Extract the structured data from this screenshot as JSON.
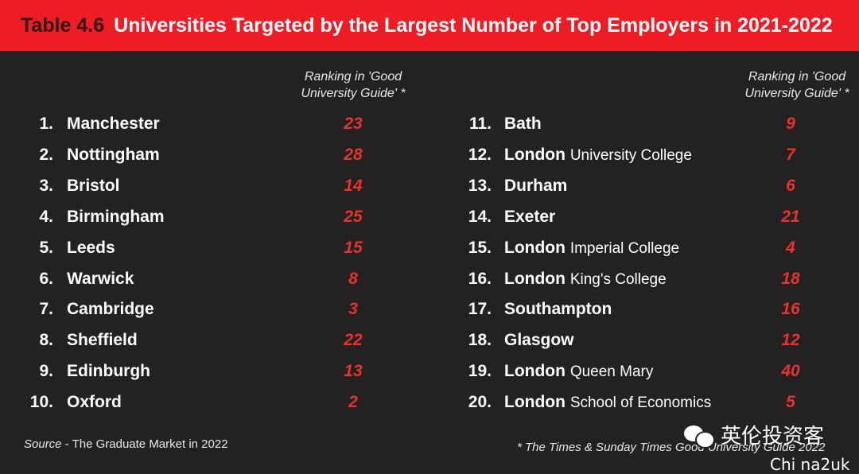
{
  "header": {
    "table_number": "Table 4.6",
    "title": "Universities Targeted by the Largest Number of Top Employers in 2021-2022"
  },
  "column_header": {
    "line1": "Ranking in 'Good",
    "line2": "University Guide' *"
  },
  "left_rows": [
    {
      "pos": "1.",
      "name": "Manchester",
      "sub": "",
      "score": "23"
    },
    {
      "pos": "2.",
      "name": "Nottingham",
      "sub": "",
      "score": "28"
    },
    {
      "pos": "3.",
      "name": "Bristol",
      "sub": "",
      "score": "14"
    },
    {
      "pos": "4.",
      "name": "Birmingham",
      "sub": "",
      "score": "25"
    },
    {
      "pos": "5.",
      "name": "Leeds",
      "sub": "",
      "score": "15"
    },
    {
      "pos": "6.",
      "name": "Warwick",
      "sub": "",
      "score": "8"
    },
    {
      "pos": "7.",
      "name": "Cambridge",
      "sub": "",
      "score": "3"
    },
    {
      "pos": "8.",
      "name": "Sheffield",
      "sub": "",
      "score": "22"
    },
    {
      "pos": "9.",
      "name": "Edinburgh",
      "sub": "",
      "score": "13"
    },
    {
      "pos": "10.",
      "name": "Oxford",
      "sub": "",
      "score": "2"
    }
  ],
  "right_rows": [
    {
      "pos": "11.",
      "name": "Bath",
      "sub": "",
      "score": "9"
    },
    {
      "pos": "12.",
      "name": "London",
      "sub": "University College",
      "score": "7"
    },
    {
      "pos": "13.",
      "name": "Durham",
      "sub": "",
      "score": "6"
    },
    {
      "pos": "14.",
      "name": "Exeter",
      "sub": "",
      "score": "21"
    },
    {
      "pos": "15.",
      "name": "London",
      "sub": "Imperial College",
      "score": "4"
    },
    {
      "pos": "16.",
      "name": "London",
      "sub": "King's College",
      "score": "18"
    },
    {
      "pos": "17.",
      "name": "Southampton",
      "sub": "",
      "score": "16"
    },
    {
      "pos": "18.",
      "name": "Glasgow",
      "sub": "",
      "score": "12"
    },
    {
      "pos": "19.",
      "name": "London",
      "sub": "Queen Mary",
      "score": "40"
    },
    {
      "pos": "20.",
      "name": "London",
      "sub": "School of Economics",
      "score": "5"
    }
  ],
  "source": {
    "label": "Source",
    "text": " - The Graduate Market in 2022"
  },
  "footnote": "* The Times & Sunday Times Good University Guide 2022",
  "watermark": {
    "icon": "wechat-icon",
    "text": "英伦投资客",
    "handle": "Chi na2uk"
  },
  "colors": {
    "header_bg": "#ee1c25",
    "background": "#242122",
    "score": "#e8322c"
  }
}
